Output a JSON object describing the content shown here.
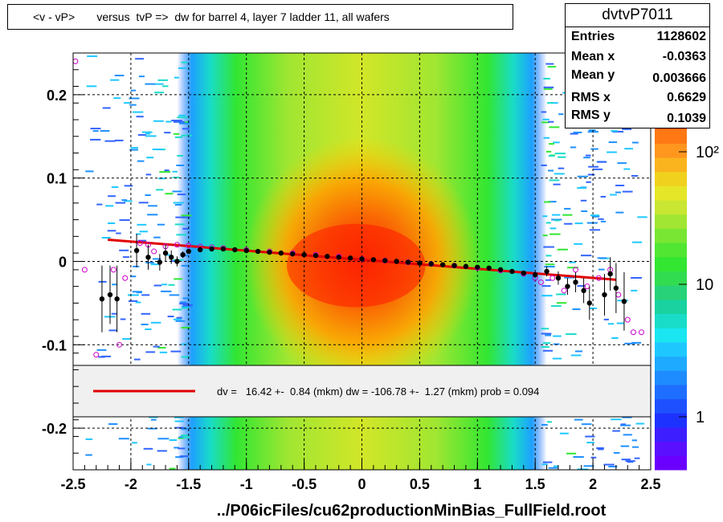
{
  "title": "<v - vP>       versus  tvP =>  dw for barrel 4, layer 7 ladder 11, all wafers",
  "stats": {
    "name": "dvtvP7011",
    "rows": [
      {
        "key": "Entries",
        "value": "1128602"
      },
      {
        "key": "Mean x",
        "value": "-0.0363"
      },
      {
        "key": "Mean y",
        "value": "0.003666"
      },
      {
        "key": "RMS x",
        "value": "0.6629"
      },
      {
        "key": "RMS y",
        "value": "0.1039"
      }
    ]
  },
  "legend": {
    "fit_text": "dv =   16.42 +-  0.84 (mkm) dw = -106.78 +-  1.27 (mkm) prob = 0.094",
    "line_color": "#e00000"
  },
  "xlabel": "../P06icFiles/cu62productionMinBias_FullField.root",
  "colorbar": {
    "tick_labels": [
      "1",
      "10",
      "10²"
    ],
    "tick_values": [
      1,
      10,
      100
    ]
  },
  "chart_data": {
    "type": "heatmap",
    "xlim": [
      -2.5,
      2.5
    ],
    "ylim": [
      -0.25,
      0.25
    ],
    "x_ticks": [
      -2.5,
      -2,
      -1.5,
      -1,
      -0.5,
      0,
      0.5,
      1,
      1.5,
      2,
      2.5
    ],
    "x_tick_labels": [
      "-2.5",
      "-2",
      "-1.5",
      "-1",
      "-0.5",
      "0",
      "0.5",
      "1",
      "1.5",
      "2",
      "2.5"
    ],
    "y_ticks": [
      -0.2,
      -0.1,
      0,
      0.1,
      0.2
    ],
    "y_tick_labels": [
      "-0.2",
      "-0.1",
      "0",
      "0.1",
      "0.2"
    ],
    "grid": true,
    "log_z": true,
    "fit_line": {
      "x": [
        -2.2,
        2.2
      ],
      "y": [
        0.026,
        -0.022
      ],
      "color": "#e00000"
    },
    "profile_mean": {
      "color": "#000000",
      "points": [
        {
          "x": -2.25,
          "y": -0.045,
          "err": 0.04
        },
        {
          "x": -2.18,
          "y": -0.04,
          "err": 0.035
        },
        {
          "x": -2.12,
          "y": -0.045,
          "err": 0.04
        },
        {
          "x": -1.95,
          "y": 0.013,
          "err": 0.02
        },
        {
          "x": -1.85,
          "y": 0.005,
          "err": 0.015
        },
        {
          "x": -1.75,
          "y": -0.001,
          "err": 0.01
        },
        {
          "x": -1.7,
          "y": 0.01,
          "err": 0.01
        },
        {
          "x": -1.65,
          "y": 0.005,
          "err": 0.008
        },
        {
          "x": -1.6,
          "y": 0.0,
          "err": 0.006
        },
        {
          "x": -1.55,
          "y": 0.008,
          "err": 0.004
        },
        {
          "x": -1.5,
          "y": 0.012,
          "err": 0.003
        },
        {
          "x": -1.4,
          "y": 0.014,
          "err": 0.002
        },
        {
          "x": -1.3,
          "y": 0.015,
          "err": 0.0015
        },
        {
          "x": -1.2,
          "y": 0.015,
          "err": 0.0015
        },
        {
          "x": -1.1,
          "y": 0.014,
          "err": 0.0015
        },
        {
          "x": -1.0,
          "y": 0.013,
          "err": 0.001
        },
        {
          "x": -0.9,
          "y": 0.012,
          "err": 0.001
        },
        {
          "x": -0.8,
          "y": 0.011,
          "err": 0.001
        },
        {
          "x": -0.7,
          "y": 0.01,
          "err": 0.001
        },
        {
          "x": -0.6,
          "y": 0.009,
          "err": 0.001
        },
        {
          "x": -0.5,
          "y": 0.008,
          "err": 0.001
        },
        {
          "x": -0.4,
          "y": 0.007,
          "err": 0.001
        },
        {
          "x": -0.3,
          "y": 0.006,
          "err": 0.001
        },
        {
          "x": -0.2,
          "y": 0.005,
          "err": 0.001
        },
        {
          "x": -0.1,
          "y": 0.004,
          "err": 0.001
        },
        {
          "x": 0.0,
          "y": 0.003,
          "err": 0.001
        },
        {
          "x": 0.1,
          "y": 0.002,
          "err": 0.001
        },
        {
          "x": 0.2,
          "y": 0.001,
          "err": 0.001
        },
        {
          "x": 0.3,
          "y": 0.0,
          "err": 0.001
        },
        {
          "x": 0.4,
          "y": -0.001,
          "err": 0.001
        },
        {
          "x": 0.5,
          "y": -0.002,
          "err": 0.001
        },
        {
          "x": 0.6,
          "y": -0.003,
          "err": 0.001
        },
        {
          "x": 0.7,
          "y": -0.004,
          "err": 0.001
        },
        {
          "x": 0.8,
          "y": -0.005,
          "err": 0.001
        },
        {
          "x": 0.9,
          "y": -0.006,
          "err": 0.001
        },
        {
          "x": 1.0,
          "y": -0.007,
          "err": 0.0015
        },
        {
          "x": 1.1,
          "y": -0.008,
          "err": 0.0015
        },
        {
          "x": 1.2,
          "y": -0.01,
          "err": 0.0015
        },
        {
          "x": 1.3,
          "y": -0.012,
          "err": 0.002
        },
        {
          "x": 1.4,
          "y": -0.014,
          "err": 0.003
        },
        {
          "x": 1.5,
          "y": -0.016,
          "err": 0.004
        },
        {
          "x": 1.6,
          "y": -0.012,
          "err": 0.006
        },
        {
          "x": 1.7,
          "y": -0.02,
          "err": 0.008
        },
        {
          "x": 1.78,
          "y": -0.03,
          "err": 0.01
        },
        {
          "x": 1.85,
          "y": -0.025,
          "err": 0.012
        },
        {
          "x": 1.92,
          "y": -0.035,
          "err": 0.015
        },
        {
          "x": 1.97,
          "y": -0.05,
          "err": 0.02
        },
        {
          "x": 2.1,
          "y": -0.04,
          "err": 0.025
        },
        {
          "x": 2.15,
          "y": -0.015,
          "err": 0.02
        },
        {
          "x": 2.2,
          "y": -0.032,
          "err": 0.03
        },
        {
          "x": 2.27,
          "y": -0.048,
          "err": 0.035
        }
      ]
    },
    "profile_alt": {
      "color": "#cc00cc",
      "points": [
        {
          "x": -2.48,
          "y": 0.24
        },
        {
          "x": -2.4,
          "y": -0.01
        },
        {
          "x": -2.3,
          "y": -0.112
        },
        {
          "x": -2.15,
          "y": -0.01
        },
        {
          "x": -2.1,
          "y": -0.1
        },
        {
          "x": -2.05,
          "y": -0.02
        },
        {
          "x": -1.92,
          "y": 0.022
        },
        {
          "x": -1.85,
          "y": 0.02
        },
        {
          "x": -1.8,
          "y": 0.012
        },
        {
          "x": -1.7,
          "y": 0.018
        },
        {
          "x": -1.6,
          "y": 0.02
        },
        {
          "x": -1.5,
          "y": 0.019
        },
        {
          "x": -1.4,
          "y": 0.018
        },
        {
          "x": -1.3,
          "y": 0.017
        },
        {
          "x": -1.2,
          "y": 0.016
        },
        {
          "x": -1.0,
          "y": 0.014
        },
        {
          "x": -0.8,
          "y": 0.012
        },
        {
          "x": -0.6,
          "y": 0.01
        },
        {
          "x": -0.4,
          "y": 0.008
        },
        {
          "x": -0.2,
          "y": 0.006
        },
        {
          "x": 0.0,
          "y": 0.003
        },
        {
          "x": 0.2,
          "y": 0.001
        },
        {
          "x": 0.4,
          "y": -0.001
        },
        {
          "x": 0.6,
          "y": -0.003
        },
        {
          "x": 0.8,
          "y": -0.005
        },
        {
          "x": 1.0,
          "y": -0.008
        },
        {
          "x": 1.2,
          "y": -0.011
        },
        {
          "x": 1.4,
          "y": -0.015
        },
        {
          "x": 1.5,
          "y": -0.02
        },
        {
          "x": 1.55,
          "y": -0.025
        },
        {
          "x": 1.65,
          "y": -0.02
        },
        {
          "x": 1.75,
          "y": -0.035
        },
        {
          "x": 1.85,
          "y": -0.01
        },
        {
          "x": 1.95,
          "y": -0.03
        },
        {
          "x": 2.05,
          "y": -0.02
        },
        {
          "x": 2.15,
          "y": -0.01
        },
        {
          "x": 2.22,
          "y": -0.04
        },
        {
          "x": 2.3,
          "y": -0.07
        },
        {
          "x": 2.35,
          "y": -0.085
        },
        {
          "x": 2.42,
          "y": -0.085
        }
      ]
    }
  }
}
